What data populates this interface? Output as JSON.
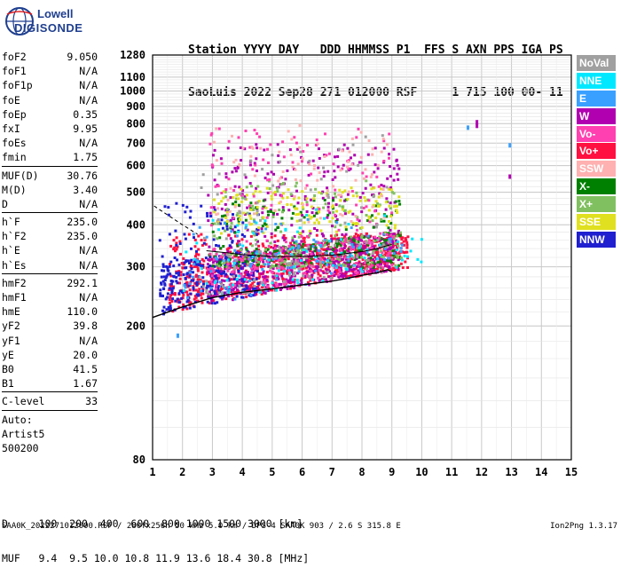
{
  "logo": {
    "line1": "Lowell",
    "line2": "DIGISONDE"
  },
  "header": {
    "line1": "Station YYYY DAY   DDD HHMMSS P1  FFS S AXN PPS IGA PS",
    "line2": "SaoLuis 2022 Sep28 271 012000 RSF     1 715 100 00- 11"
  },
  "params": {
    "group1": [
      {
        "k": "foF2",
        "v": "9.050"
      },
      {
        "k": "foF1",
        "v": "N/A"
      },
      {
        "k": "foF1p",
        "v": "N/A"
      },
      {
        "k": "foE",
        "v": "N/A"
      },
      {
        "k": "foEp",
        "v": "0.35"
      },
      {
        "k": "fxI",
        "v": "9.95"
      },
      {
        "k": "foEs",
        "v": "N/A"
      },
      {
        "k": "fmin",
        "v": "1.75"
      }
    ],
    "group2": [
      {
        "k": "MUF(D)",
        "v": "30.76"
      },
      {
        "k": "M(D)",
        "v": "3.40"
      },
      {
        "k": "D",
        "v": "N/A"
      }
    ],
    "group3": [
      {
        "k": "h`F",
        "v": "235.0"
      },
      {
        "k": "h`F2",
        "v": "235.0"
      },
      {
        "k": "h`E",
        "v": "N/A"
      },
      {
        "k": "h`Es",
        "v": "N/A"
      }
    ],
    "group4": [
      {
        "k": "hmF2",
        "v": "292.1"
      },
      {
        "k": "hmF1",
        "v": "N/A"
      },
      {
        "k": "hmE",
        "v": "110.0"
      },
      {
        "k": "yF2",
        "v": "39.8"
      },
      {
        "k": "yF1",
        "v": "N/A"
      },
      {
        "k": "yE",
        "v": "20.0"
      },
      {
        "k": "B0",
        "v": "41.5"
      },
      {
        "k": "B1",
        "v": "1.67"
      }
    ],
    "clevel": {
      "k": "C-level",
      "v": "33"
    },
    "auto": [
      "Auto:",
      "Artist5",
      "500200"
    ]
  },
  "legend": [
    {
      "label": "NoVal",
      "color": "#a0a0a0"
    },
    {
      "label": "NNE",
      "color": "#00e8ff"
    },
    {
      "label": "E",
      "color": "#3aa0ff"
    },
    {
      "label": "W",
      "color": "#b000b0"
    },
    {
      "label": "Vo-",
      "color": "#ff40b0"
    },
    {
      "label": "Vo+",
      "color": "#ff1040"
    },
    {
      "label": "SSW",
      "color": "#ffb0b0"
    },
    {
      "label": "X-",
      "color": "#008000"
    },
    {
      "label": "X+",
      "color": "#80c060"
    },
    {
      "label": "SSE",
      "color": "#e0e020"
    },
    {
      "label": "NNW",
      "color": "#2020d0"
    }
  ],
  "footer": {
    "d_line": "D     100  200  400  600  800 1000 1500 3000 [km]",
    "muf_line": "MUF   9.4  9.5 10.0 10.8 11.9 13.6 18.4 30.8 [MHz]",
    "bottom": "SAA0K_2022271012000.RSF / 280fx256h 50 kHz 5.0 km / DPS-4 SAA0K 903 / 2.6 S 315.8 E",
    "version": "Ion2Png 1.3.17"
  },
  "chart_data": {
    "type": "scatter",
    "xlabel": "",
    "ylabel": "",
    "xlim": [
      1,
      15
    ],
    "ylim": [
      80,
      1280
    ],
    "y_scale": "log",
    "x_ticks": [
      1,
      2,
      3,
      4,
      5,
      6,
      7,
      8,
      9,
      10,
      11,
      12,
      13,
      14,
      15
    ],
    "y_ticks": [
      80,
      200,
      300,
      400,
      500,
      600,
      700,
      800,
      900,
      1000,
      1100,
      1280
    ],
    "grid": true,
    "trace_curve": {
      "x": [
        1.0,
        2.0,
        3.0,
        4.0,
        5.0,
        6.0,
        7.0,
        7.5,
        8.0,
        8.5,
        8.85,
        9.0
      ],
      "y": [
        212,
        228,
        243,
        252,
        258,
        265,
        272,
        277,
        283,
        288,
        294,
        290
      ]
    },
    "dashed_line": {
      "x": [
        1.05,
        1.5,
        2.0,
        2.5
      ],
      "y": [
        455,
        428,
        400,
        375
      ]
    },
    "upper_trace": {
      "x": [
        2.8,
        3.5,
        4.0,
        5.0,
        6.0,
        7.0,
        8.0,
        8.5,
        9.0
      ],
      "y": [
        335,
        330,
        326,
        322,
        322,
        325,
        333,
        340,
        350
      ]
    },
    "scatter_clusters": [
      {
        "color": "#ff1040",
        "x": [
          1.5,
          9.5
        ],
        "y": [
          215,
          380
        ],
        "n": 900
      },
      {
        "color": "#b000b0",
        "x": [
          2.8,
          9.2
        ],
        "y": [
          240,
          700
        ],
        "n": 700
      },
      {
        "color": "#2020d0",
        "x": [
          1.2,
          4.5
        ],
        "y": [
          215,
          470
        ],
        "n": 300
      },
      {
        "color": "#008000",
        "x": [
          2.8,
          9.3
        ],
        "y": [
          300,
          480
        ],
        "n": 300
      },
      {
        "color": "#80c060",
        "x": [
          3.0,
          9.3
        ],
        "y": [
          300,
          550
        ],
        "n": 250
      },
      {
        "color": "#e0e020",
        "x": [
          3.0,
          9.2
        ],
        "y": [
          380,
          520
        ],
        "n": 300
      },
      {
        "color": "#ff40b0",
        "x": [
          2.8,
          9.0
        ],
        "y": [
          260,
          780
        ],
        "n": 300
      },
      {
        "color": "#ffb0b0",
        "x": [
          3.0,
          8.8
        ],
        "y": [
          400,
          800
        ],
        "n": 200
      },
      {
        "color": "#00e8ff",
        "x": [
          2.0,
          10.0
        ],
        "y": [
          250,
          450
        ],
        "n": 100
      },
      {
        "color": "#3aa0ff",
        "x": [
          2.0,
          9.5
        ],
        "y": [
          240,
          420
        ],
        "n": 100
      },
      {
        "color": "#a0a0a0",
        "x": [
          2.5,
          9.0
        ],
        "y": [
          250,
          750
        ],
        "n": 120
      }
    ],
    "isolated_points": [
      {
        "x": 11.8,
        "y": 800,
        "color": "#b000b0"
      },
      {
        "x": 11.8,
        "y": 820,
        "color": "#b000b0"
      },
      {
        "x": 12.9,
        "y": 565,
        "color": "#b000b0"
      },
      {
        "x": 12.9,
        "y": 700,
        "color": "#3aa0ff"
      },
      {
        "x": 11.5,
        "y": 790,
        "color": "#3aa0ff"
      },
      {
        "x": 1.8,
        "y": 190,
        "color": "#3aa0ff"
      }
    ]
  }
}
